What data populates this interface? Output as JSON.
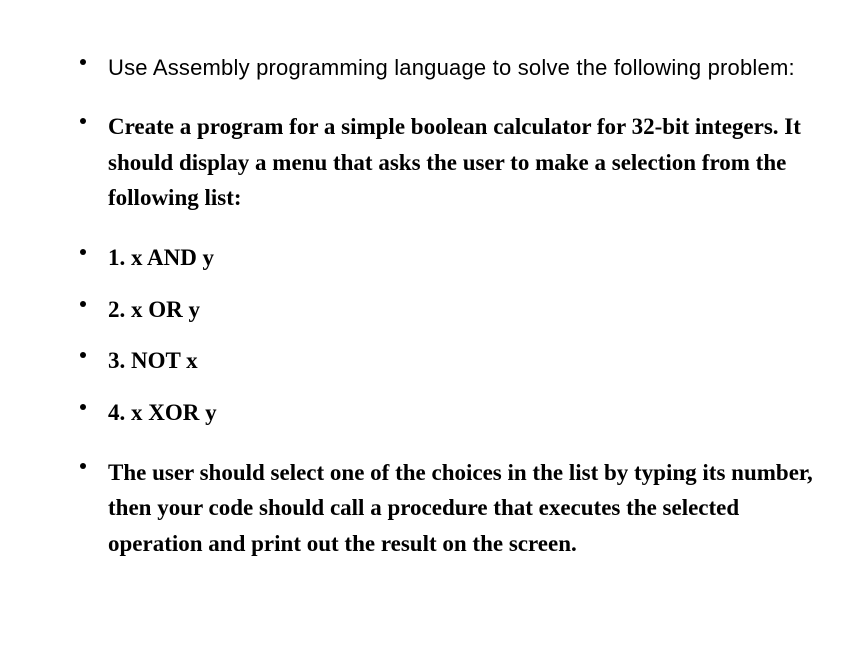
{
  "items": [
    {
      "text": "Use Assembly programming language to solve the following problem:",
      "style": "sans"
    },
    {
      "text": "Create a program for a simple boolean calculator for 32-bit integers. It should display a menu that asks the user to make a selection from the following list:",
      "style": "serif"
    },
    {
      "text": "1. x AND y",
      "style": "serif",
      "tight": true
    },
    {
      "text": "2. x OR y",
      "style": "serif",
      "tight": true
    },
    {
      "text": "3. NOT x",
      "style": "serif",
      "tight": true
    },
    {
      "text": "4. x XOR y",
      "style": "serif"
    },
    {
      "text": "The user should select one of the choices in the list by typing its number, then your code should call a procedure that executes the selected operation and print out the result on the screen.",
      "style": "serif"
    }
  ],
  "colors": {
    "background": "#ffffff",
    "text": "#000000",
    "bullet": "#000000"
  }
}
